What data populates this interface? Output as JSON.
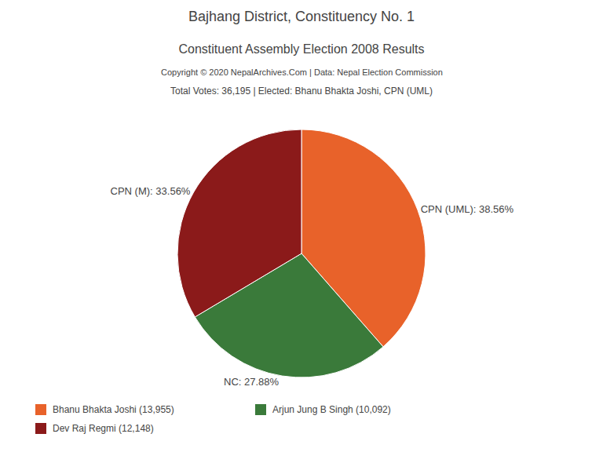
{
  "chart_data": {
    "type": "pie",
    "title": "Bajhang District, Constituency No. 1",
    "subtitle": "Constituent Assembly Election 2008 Results",
    "annotations": [
      "Copyright © 2020 NepalArchives.Com | Data: Nepal Election Commission",
      "Total Votes: 36,195 | Elected: Bhanu Bhakta Joshi, CPN (UML)"
    ],
    "categories": [
      "CPN (UML)",
      "NC",
      "CPN (M)"
    ],
    "values": [
      38.56,
      27.88,
      33.56
    ],
    "value_labels": [
      "CPN (UML): 38.56%",
      "NC: 27.88%",
      "CPN (M): 33.56%"
    ],
    "colors": [
      "#e8622a",
      "#3a7a3a",
      "#8b1a1a"
    ],
    "data_labels": true,
    "legend": "lower left",
    "legend_entries": [
      {
        "name": "Bhanu Bhakta Joshi (13,955)",
        "color": "#e8622a"
      },
      {
        "name": "Dev Raj Regmi (12,148)",
        "color": "#8b1a1a"
      },
      {
        "name": "Arjun Jung B Singh (10,092)",
        "color": "#3a7a3a"
      }
    ]
  }
}
